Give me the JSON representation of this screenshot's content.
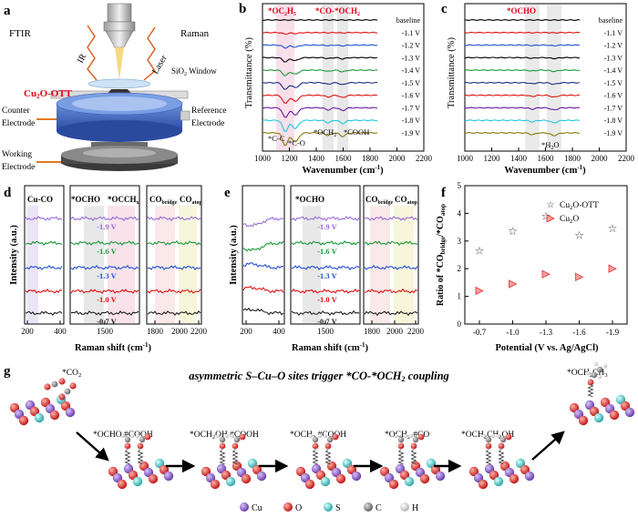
{
  "panel_a": {
    "letter": "a",
    "ftir": "FTIR",
    "raman": "Raman",
    "ir": "IR",
    "laser": "Laser",
    "window": "SiO",
    "window_sub": "2",
    "window_rest": " Window",
    "catalyst": "Cu",
    "catalyst_sub": "2",
    "catalyst_rest": "O-OTT",
    "counter1": "Counter",
    "counter2": "Electrode",
    "reference1": "Reference",
    "reference2": "Electrode",
    "working1": "Working",
    "working2": "Electrode"
  },
  "panel_b": {
    "letter": "b",
    "ylabel": "Transmittance (%)",
    "xlabel": "Wavenumber (cm",
    "xlabel_sup": "-1",
    "xlabel_end": ")",
    "ticks": [
      "1000",
      "1200",
      "1400",
      "1600",
      "1800",
      "2000",
      "2200"
    ],
    "top_label1": "*OC",
    "top_label1_sub1": "2",
    "top_label1_mid": "H",
    "top_label1_sub2": "5",
    "top_label2": "*CO-*OCH",
    "top_label2_sub": "2",
    "bottom_cc": "*C-C",
    "bottom_co": "*C-O",
    "bottom_och2": "*OCH",
    "bottom_och2_sub": "2",
    "bottom_cooh": "*COOH",
    "legend": [
      "baseline",
      "-1.1 V",
      "-1.2 V",
      "-1.3 V",
      "-1.4 V",
      "-1.5 V",
      "-1.6 V",
      "-1.7 V",
      "-1.8 V",
      "-1.9 V"
    ]
  },
  "panel_c": {
    "letter": "c",
    "ylabel": "Transmittance (%)",
    "xlabel": "Wavenumber (cm",
    "xlabel_sup": "-1",
    "xlabel_end": ")",
    "ticks": [
      "1000",
      "1200",
      "1400",
      "1600",
      "1800",
      "2000",
      "2200"
    ],
    "top_label": "*OCHO",
    "bottom_label": "*H",
    "bottom_label_sub": "2",
    "bottom_label_end": "O",
    "legend": [
      "baseline",
      "-1.1 V",
      "-1.2 V",
      "-1.3 V",
      "-1.4 V",
      "-1.5 V",
      "-1.6 V",
      "-1.7 V",
      "-1.8 V",
      "-1.9 V"
    ]
  },
  "panel_d": {
    "letter": "d",
    "ylabel": "Intensity (a.u.)",
    "xlabel": "Raman shift (cm",
    "xlabel_sup": "-1",
    "xlabel_end": ")",
    "header_cuco": "Cu-CO",
    "header_ocho": "*OCHO",
    "header_occh": "*OCCH",
    "header_occh_sub": "x",
    "header_cobridge": "CO",
    "header_cobridge_sub": "bridge",
    "header_coatop": "CO",
    "header_coatop_sub": "atop",
    "ticks1": [
      "200",
      "400"
    ],
    "ticks2": [
      "1500"
    ],
    "ticks3": [
      "1800",
      "2000",
      "2200"
    ],
    "voltages": [
      "-1.9 V",
      "-1.6 V",
      "-1.3 V",
      "-1.0 V",
      "-0.7 V"
    ]
  },
  "panel_e": {
    "letter": "e",
    "ylabel": "Intensity (a.u.)",
    "xlabel": "Raman shift (cm",
    "xlabel_sup": "-1",
    "xlabel_end": ")",
    "header_ocho": "*OCHO",
    "header_cobridge": "CO",
    "header_cobridge_sub": "bridge",
    "header_coatop": "CO",
    "header_coatop_sub": "atop",
    "ticks1": [
      "200",
      "400"
    ],
    "ticks2": [
      "1500"
    ],
    "ticks3": [
      "1800",
      "2000",
      "2200"
    ],
    "voltages": [
      "-1.9 V",
      "-1.6 V",
      "-1.3 V",
      "-1.0 V",
      "-0.7 V"
    ]
  },
  "chart_data": {
    "type": "scatter",
    "title": "",
    "xlabel": "Potential (V vs. Ag/AgCl)",
    "ylabel": "Ratio of *CO_bridge/*CO_atop",
    "categories": [
      "-0.7",
      "-1.0",
      "-1.3",
      "-1.6",
      "-1.9"
    ],
    "ylim": [
      0,
      5
    ],
    "yticks": [
      "0",
      "1",
      "2",
      "3",
      "4",
      "5"
    ],
    "series": [
      {
        "name": "Cu2O-OTT",
        "marker": "star",
        "values": [
          2.65,
          3.35,
          3.9,
          3.2,
          3.45
        ]
      },
      {
        "name": "Cu2O",
        "marker": "triangle",
        "values": [
          1.2,
          1.45,
          1.8,
          1.7,
          2.0
        ]
      }
    ]
  },
  "panel_f": {
    "letter": "f",
    "ylabel_a": "Ratio of *CO",
    "ylabel_sub1": "bridge",
    "ylabel_b": "/*CO",
    "ylabel_sub2": "atop",
    "xlabel": "Potential (V vs. Ag/AgCl)",
    "legend1": "Cu",
    "legend1_sub": "2",
    "legend1_rest": "O-OTT",
    "legend2": "Cu",
    "legend2_sub": "2",
    "legend2_rest": "O"
  },
  "panel_g": {
    "letter": "g",
    "title": "asymmetric S–Cu–O sites trigger *CO-*OCH",
    "title_sub": "2",
    "title_end": " coupling",
    "co2": "*CO",
    "co2_sub": "2",
    "step1": "*OCHO #COOH",
    "step2a": "*OCH",
    "step2_sub": "2",
    "step2b": "OH #COOH",
    "step3a": "*OCH",
    "step3_sub": "2",
    "step3b": " #COOH",
    "step4a": "*OCH",
    "step4_sub": "2",
    "step4b": "-#CO",
    "step5a": "*OCH",
    "step5_sub1": "2",
    "step5b": "CH",
    "step5_sub2": "2",
    "step5c": "OH",
    "product_a": "*OCH",
    "product_sub1": "2",
    "product_b": "CH",
    "product_sub2": "3",
    "legend": [
      "Cu",
      "O",
      "S",
      "C",
      "H"
    ]
  },
  "colors": {
    "accent_red": "#e8001c",
    "cu": "#8a5cc8",
    "o": "#e03030",
    "s": "#4ec8c8",
    "c": "#808080",
    "h": "#e8e8e8"
  }
}
